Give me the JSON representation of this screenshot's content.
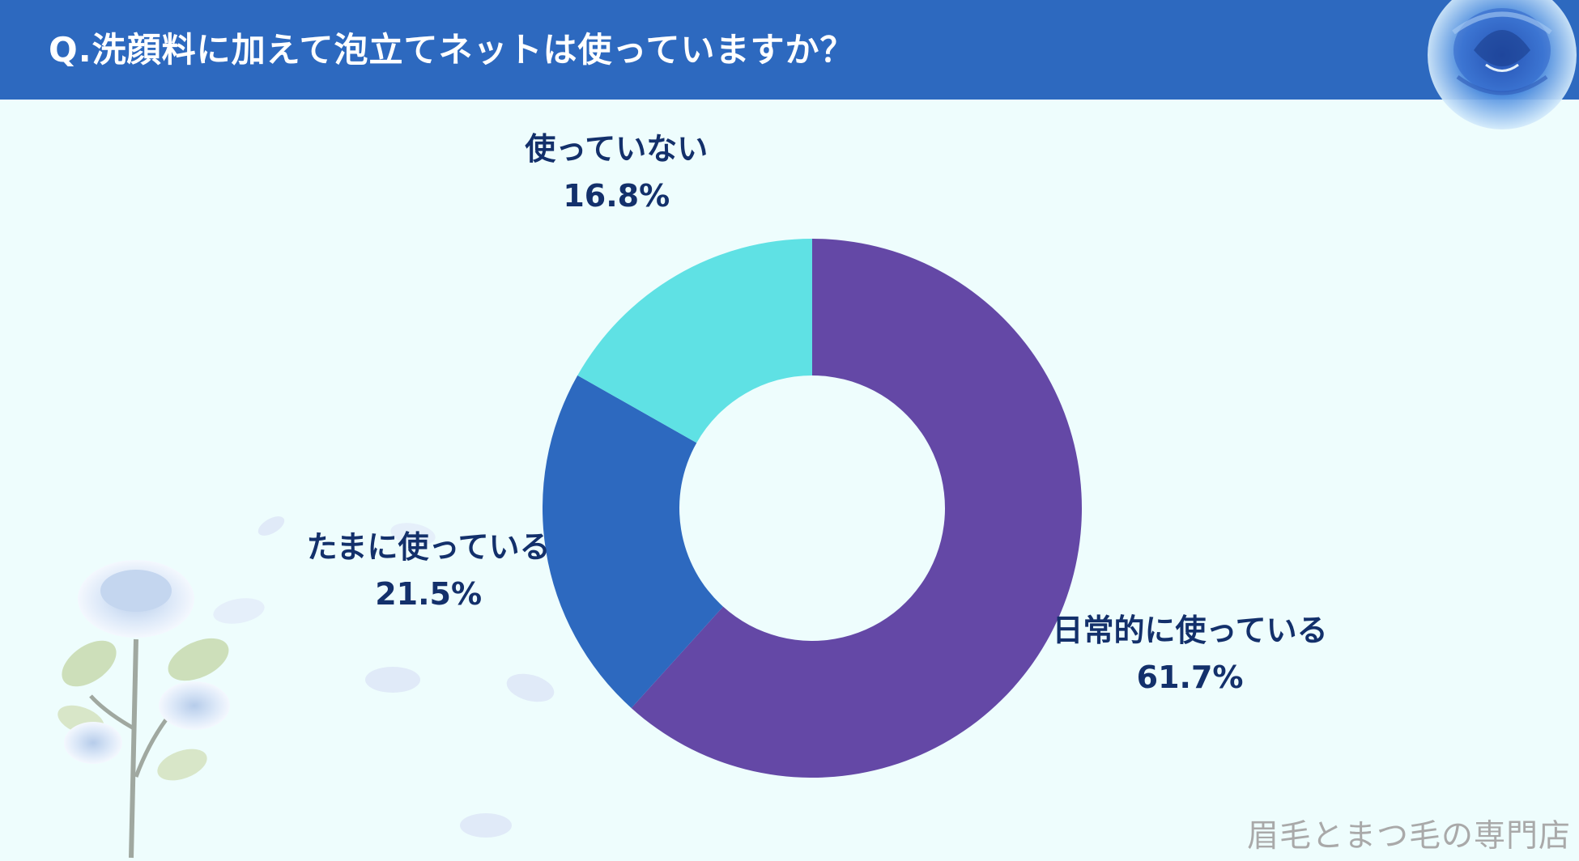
{
  "header": {
    "title": "Q.洗顔料に加えて泡立てネットは使っていますか？"
  },
  "chart_data": {
    "type": "pie",
    "categories": [
      "日常的に使っている",
      "たまに使っている",
      "使っていない"
    ],
    "values": [
      61.7,
      21.5,
      16.8
    ],
    "value_labels": [
      "61.7%",
      "21.5%",
      "16.8%"
    ],
    "colors": [
      "#6448A6",
      "#2D69BF",
      "#5FE1E4"
    ],
    "legend": "none"
  },
  "footer": {
    "watermark": "眉毛とまつ毛の専門店"
  },
  "colors": {
    "header": "#2D69BF",
    "background": "#EEFDFD",
    "label_text": "#13306B"
  }
}
